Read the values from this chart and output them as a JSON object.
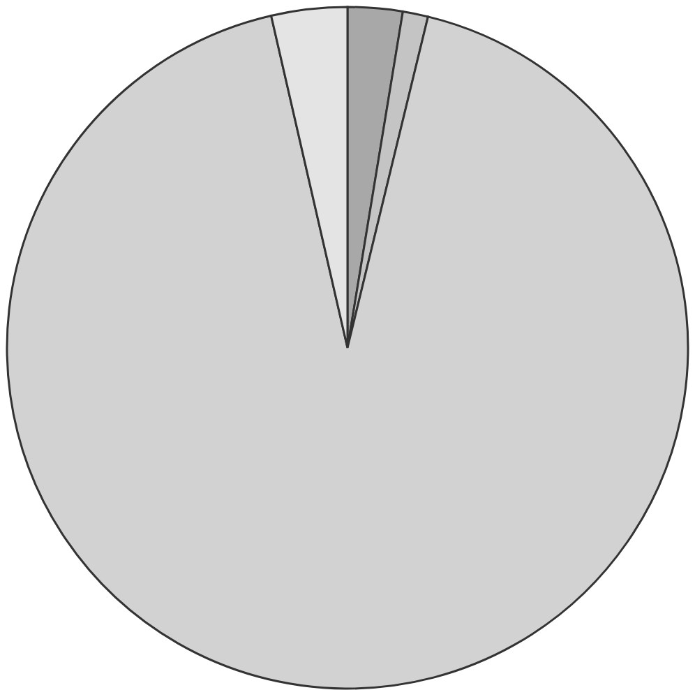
{
  "chart_data": {
    "type": "pie",
    "categories": [
      null,
      null,
      null,
      null
    ],
    "values": [
      2.6,
      1.2,
      92.6,
      3.6
    ],
    "colors": [
      "#a8a8a8",
      "#c4c4c4",
      "#d2d2d2",
      "#e4e4e4"
    ]
  }
}
